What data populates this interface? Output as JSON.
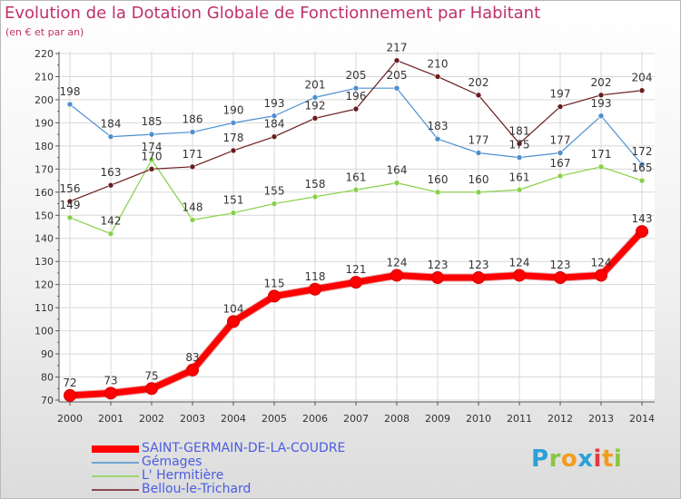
{
  "header": {
    "title": "Evolution de la Dotation Globale de Fonctionnement par Habitant",
    "subtitle": "(en € et par an)"
  },
  "logo": {
    "letters": [
      "P",
      "r",
      "o",
      "x",
      "i",
      "t",
      "i"
    ],
    "colors": [
      "#2aa1d6",
      "#8bc63f",
      "#f39c1c",
      "#2aa1d6",
      "#e2383f",
      "#f39c1c",
      "#8bc63f"
    ]
  },
  "chart_data": {
    "type": "line",
    "title": "Evolution de la Dotation Globale de Fonctionnement par Habitant",
    "subtitle": "(en € et par an)",
    "x": [
      "2000",
      "2001",
      "2002",
      "2003",
      "2004",
      "2005",
      "2006",
      "2007",
      "2008",
      "2009",
      "2010",
      "2011",
      "2012",
      "2013",
      "2014"
    ],
    "ylim": [
      70,
      220
    ],
    "yticks": [
      70,
      80,
      90,
      100,
      110,
      120,
      130,
      140,
      150,
      160,
      170,
      180,
      190,
      200,
      210,
      220
    ],
    "grid": true,
    "legend_position": "bottom-left",
    "series": [
      {
        "name": "SAINT-GERMAIN-DE-LA-COUDRE",
        "color": "#ff0000",
        "values": [
          72,
          73,
          75,
          83,
          104,
          115,
          118,
          121,
          124,
          123,
          123,
          124,
          123,
          124,
          143
        ]
      },
      {
        "name": "Gémages",
        "color": "#4c8fd0",
        "values": [
          198,
          184,
          185,
          186,
          190,
          193,
          201,
          205,
          205,
          183,
          177,
          175,
          177,
          193,
          172
        ]
      },
      {
        "name": "L' Hermitière",
        "color": "#86d048",
        "values": [
          149,
          142,
          174,
          148,
          151,
          155,
          158,
          161,
          164,
          160,
          160,
          161,
          167,
          171,
          165
        ]
      },
      {
        "name": "Bellou-le-Trichard",
        "color": "#6b1c1c",
        "values": [
          156,
          163,
          170,
          171,
          178,
          184,
          192,
          196,
          217,
          210,
          202,
          181,
          197,
          202,
          204
        ]
      }
    ]
  }
}
